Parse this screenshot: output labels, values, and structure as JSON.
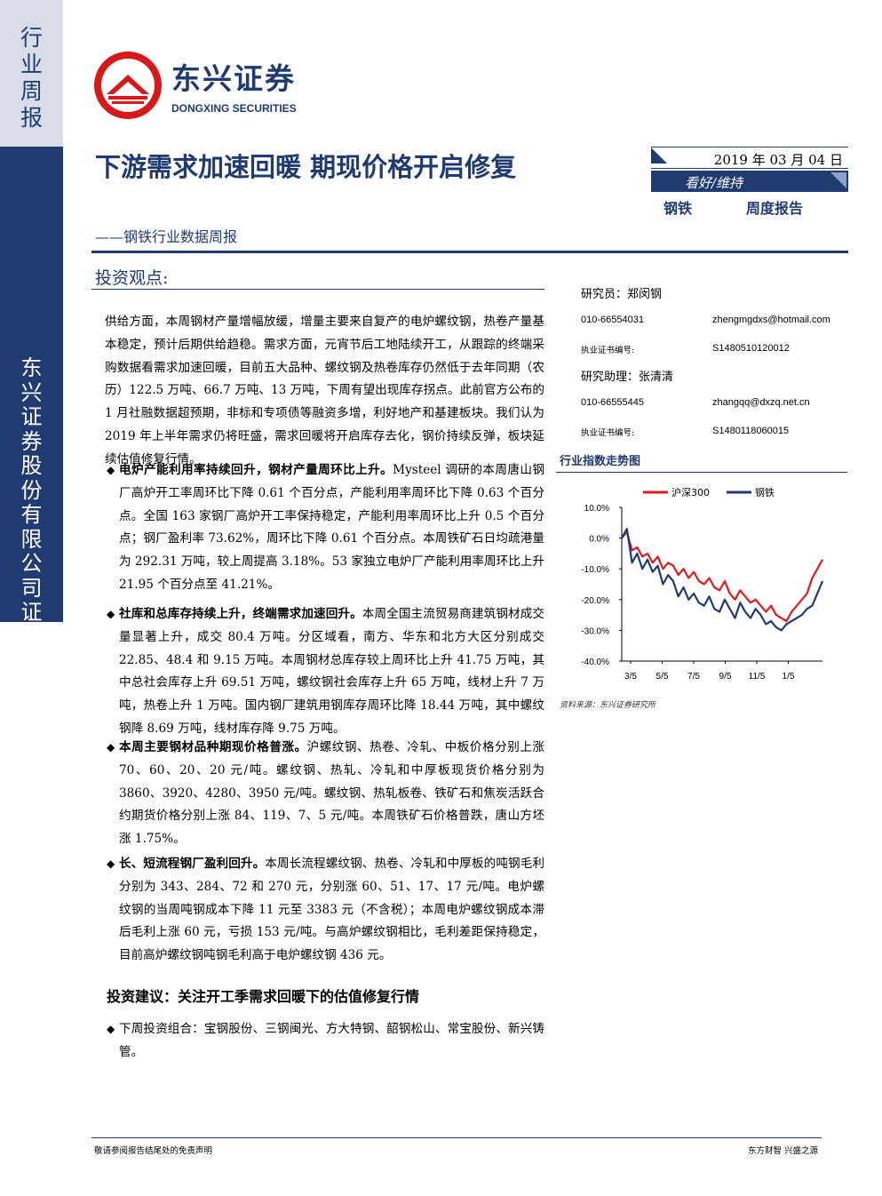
{
  "sidebar": {
    "report_type": "行业周报",
    "company_full": "东兴证券股份有限公司证券研究报告"
  },
  "brand": {
    "name_cn": "东兴证券",
    "name_en": "DONGXING SECURITIES",
    "logo_color": "#d7191c",
    "accent_color": "#1f3b70"
  },
  "header": {
    "title": "下游需求加速回暖 期现价格开启修复",
    "subtitle": "——钢铁行业数据周报",
    "date": "2019 年 03 月 04 日",
    "rating": "看好/维持",
    "industry": "钢铁",
    "report_kind": "周度报告"
  },
  "section_title": "投资观点:",
  "intro": "供给方面，本周钢材产量增幅放缓，增量主要来自复产的电炉螺纹钢，热卷产量基本稳定，预计后期供给趋稳。需求方面，元宵节后工地陆续开工，从跟踪的终端采购数据看需求加速回暖，目前五大品种、螺纹钢及热卷库存仍然低于去年同期（农历）122.5 万吨、66.7 万吨、13 万吨，下周有望出现库存拐点。此前官方公布的 1 月社融数据超预期，非标和专项债等融资多增，利好地产和基建板块。我们认为 2019 年上半年需求仍将旺盛，需求回暖将开启库存去化，钢价持续反弹，板块延续估值修复行情。",
  "bullets": [
    {
      "lead": "电炉产能利用率持续回升，钢材产量周环比上升。",
      "text": "Mysteel 调研的本周唐山钢厂高炉开工率周环比下降 0.61 个百分点，产能利用率周环比下降 0.63 个百分点。全国 163 家钢厂高炉开工率保持稳定，产能利用率周环比上升 0.5 个百分点；钢厂盈利率 73.62%，周环比下降 0.61 个百分点。本周铁矿石日均疏港量为 292.31 万吨，较上周提高 3.18%。53 家独立电炉厂产能利用率周环比上升 21.95 个百分点至 41.21%。"
    },
    {
      "lead": "社库和总库存持续上升，终端需求加速回升。",
      "text": "本周全国主流贸易商建筑钢材成交量显著上升，成交 80.4 万吨。分区域看，南方、华东和北方大区分别成交22.85、48.4 和 9.15 万吨。本周钢材总库存较上周环比上升 41.75 万吨，其中总社会库存上升 69.51 万吨，螺纹钢社会库存上升 65 万吨，线材上升 7 万吨，热卷上升 1 万吨。国内钢厂建筑用钢库存周环比降 18.44 万吨，其中螺纹钢降 8.69 万吨，线材库存降 9.75 万吨。"
    },
    {
      "lead": "本周主要钢材品种期现价格普涨。",
      "text": "沪螺纹钢、热卷、冷轧、中板价格分别上涨 70、60、20、20 元/吨。螺纹钢、热轧、冷轧和中厚板现货价格分别为 3860、3920、4280、3950 元/吨。螺纹钢、热轧板卷、铁矿石和焦炭活跃合约期货价格分别上涨 84、119、7、5 元/吨。本周铁矿石价格普跌，唐山方坯涨 1.75%。"
    },
    {
      "lead": "长、短流程钢厂盈利回升。",
      "text": "本周长流程螺纹钢、热卷、冷轧和中厚板的吨钢毛利分别为 343、284、72 和 270 元，分别涨 60、51、17、17 元/吨。电炉螺纹钢的当周吨钢成本下降 11 元至 3383 元（不含税）；本周电炉螺纹钢成本滞后毛利上涨 60 元，亏损 153 元/吨。与高炉螺纹钢相比，毛利差距保持稳定，目前高炉螺纹钢吨钢毛利高于电炉螺纹钢 436 元。"
    }
  ],
  "advice": {
    "title": "投资建议：关注开工季需求回暖下的估值修复行情",
    "portfolio": "下周投资组合：宝钢股份、三钢闽光、方大特钢、韶钢松山、常宝股份、新兴铸管。"
  },
  "analysts": [
    {
      "role": "研究员：郑闵钢",
      "phone": "010-66554031",
      "email": "zhengmgdxs@hotmail.com",
      "cert_label": "执业证书编号:",
      "cert_no": "S1480510120012"
    },
    {
      "role": "研究助理：张清清",
      "phone": "010-66555445",
      "email": "zhangqq@dxzq.net.cn",
      "cert_label": "执业证书编号:",
      "cert_no": "S1480118060015"
    }
  ],
  "chart_title": "行业指数走势图",
  "chart_source": "资料来源：东兴证券研究所",
  "chart_data": {
    "type": "line",
    "title": "行业指数走势图",
    "x_ticks": [
      "3/5",
      "5/5",
      "7/5",
      "9/5",
      "11/5",
      "1/5"
    ],
    "y_ticks": [
      "10.0%",
      "0.0%",
      "-10.0%",
      "-20.0%",
      "-30.0%",
      "-40.0%"
    ],
    "ylim": [
      -40,
      10
    ],
    "grid": false,
    "legend_position": "top",
    "series": [
      {
        "name": "沪深300",
        "color": "#e31a1c",
        "values": [
          0,
          2,
          -4,
          -3,
          -6,
          -5,
          -8,
          -6,
          -10,
          -8,
          -9,
          -12,
          -10,
          -13,
          -11,
          -14,
          -15,
          -13,
          -16,
          -17,
          -14,
          -18,
          -20,
          -17,
          -19,
          -21,
          -20,
          -22,
          -24,
          -22,
          -25,
          -26,
          -27,
          -24,
          -22,
          -20,
          -18,
          -13,
          -10,
          -7
        ]
      },
      {
        "name": "钢铁",
        "color": "#1f3b70",
        "values": [
          0,
          3,
          -8,
          -5,
          -10,
          -7,
          -11,
          -9,
          -15,
          -12,
          -14,
          -19,
          -16,
          -20,
          -18,
          -21,
          -22,
          -19,
          -23,
          -24,
          -20,
          -23,
          -26,
          -21,
          -24,
          -26,
          -23,
          -25,
          -28,
          -27,
          -29,
          -30,
          -28,
          -27,
          -26,
          -25,
          -23,
          -22,
          -18,
          -14
        ]
      }
    ]
  },
  "footer": {
    "left": "敬请参阅报告结尾处的免责声明",
    "right": "东方财智  兴盛之源"
  }
}
